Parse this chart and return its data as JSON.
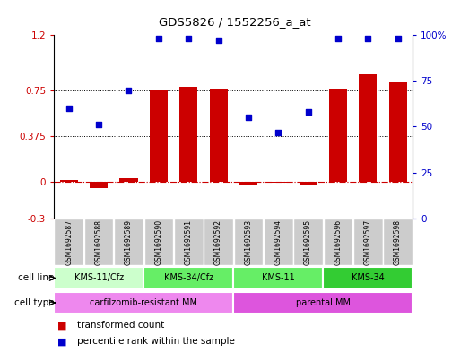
{
  "title": "GDS5826 / 1552256_a_at",
  "samples": [
    "GSM1692587",
    "GSM1692588",
    "GSM1692589",
    "GSM1692590",
    "GSM1692591",
    "GSM1692592",
    "GSM1692593",
    "GSM1692594",
    "GSM1692595",
    "GSM1692596",
    "GSM1692597",
    "GSM1692598"
  ],
  "transformed_count": [
    0.01,
    -0.05,
    0.03,
    0.75,
    0.78,
    0.76,
    -0.03,
    -0.01,
    -0.02,
    0.76,
    0.88,
    0.82
  ],
  "percentile_rank": [
    60,
    51,
    70,
    98,
    98,
    97,
    55,
    47,
    58,
    98,
    98,
    98
  ],
  "left_yticks": [
    -0.3,
    0,
    0.375,
    0.75,
    1.2
  ],
  "right_yticks": [
    0,
    25,
    50,
    75,
    100
  ],
  "right_ytick_labels": [
    "0",
    "25",
    "50",
    "75",
    "100%"
  ],
  "ylim_left": [
    -0.3,
    1.2
  ],
  "ylim_right": [
    0,
    100
  ],
  "bar_color": "#cc0000",
  "dot_color": "#0000cc",
  "dotted_lines": [
    0.375,
    0.75
  ],
  "cell_line_groups": [
    {
      "label": "KMS-11/Cfz",
      "start": 0,
      "end": 3,
      "color": "#ccffcc"
    },
    {
      "label": "KMS-34/Cfz",
      "start": 3,
      "end": 6,
      "color": "#66ee66"
    },
    {
      "label": "KMS-11",
      "start": 6,
      "end": 9,
      "color": "#66ee66"
    },
    {
      "label": "KMS-34",
      "start": 9,
      "end": 12,
      "color": "#33cc33"
    }
  ],
  "cell_type_groups": [
    {
      "label": "carfilzomib-resistant MM",
      "start": 0,
      "end": 6,
      "color": "#ee88ee"
    },
    {
      "label": "parental MM",
      "start": 6,
      "end": 12,
      "color": "#dd55dd"
    }
  ],
  "legend_tc": "transformed count",
  "legend_pr": "percentile rank within the sample",
  "cell_line_label": "cell line",
  "cell_type_label": "cell type",
  "left_axis_color": "#cc0000",
  "right_axis_color": "#0000cc",
  "bg_color": "#ffffff",
  "sample_bg_color": "#cccccc"
}
